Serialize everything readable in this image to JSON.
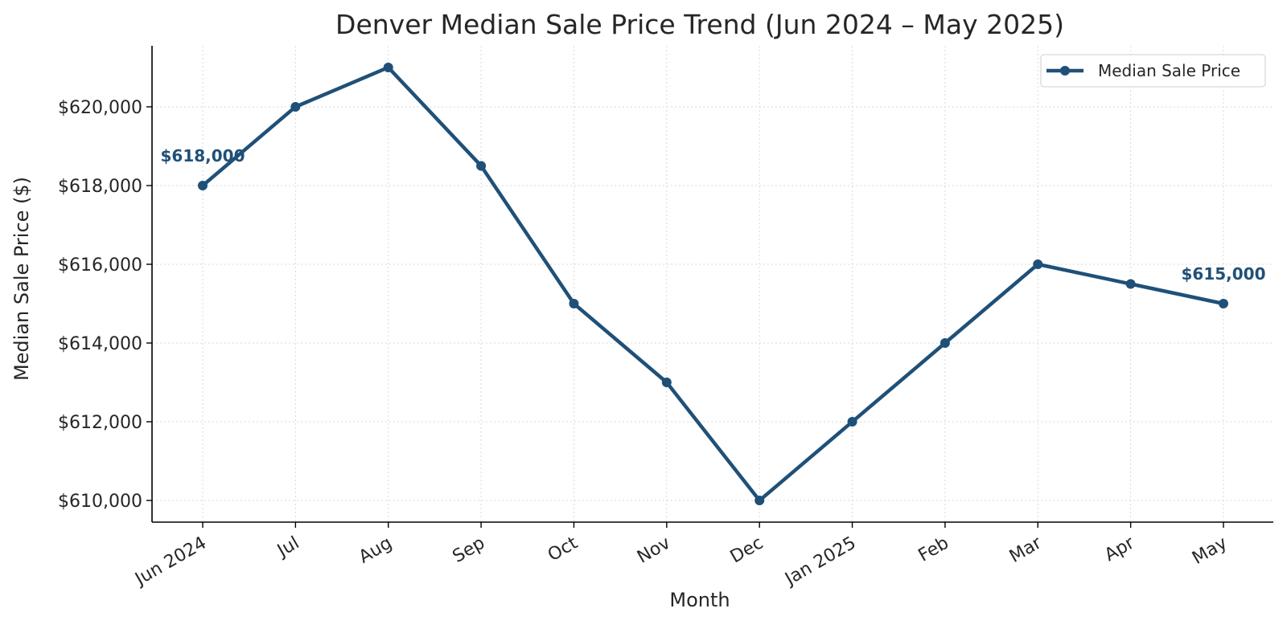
{
  "chart_data": {
    "type": "line",
    "title": "Denver Median Sale Price Trend (Jun 2024 – May 2025)",
    "xlabel": "Month",
    "ylabel": "Median Sale Price ($)",
    "categories": [
      "Jun 2024",
      "Jul",
      "Aug",
      "Sep",
      "Oct",
      "Nov",
      "Dec",
      "Jan 2025",
      "Feb",
      "Mar",
      "Apr",
      "May"
    ],
    "series": [
      {
        "name": "Median Sale Price",
        "color": "#1f5078",
        "marker": "circle",
        "values": [
          618000,
          620000,
          621000,
          618500,
          615000,
          613000,
          610000,
          612000,
          614000,
          616000,
          615500,
          615000
        ]
      }
    ],
    "ylim": [
      609450,
      621550
    ],
    "yticks": [
      610000,
      612000,
      614000,
      616000,
      618000,
      620000
    ],
    "ytick_labels": [
      "$610,000",
      "$612,000",
      "$614,000",
      "$616,000",
      "$618,000",
      "$620,000"
    ],
    "annotations": [
      {
        "index": 0,
        "text": "$618,000"
      },
      {
        "index": 11,
        "text": "$615,000"
      }
    ],
    "grid": true,
    "legend_position": "top-right"
  }
}
